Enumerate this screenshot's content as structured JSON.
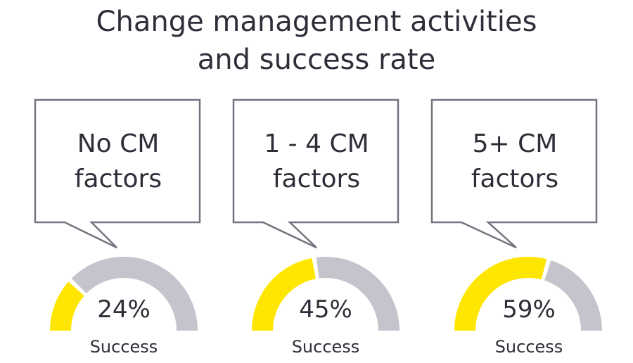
{
  "title": {
    "line1": "Change management activities",
    "line2": "and success rate"
  },
  "colors": {
    "success": "#ffe600",
    "remainder": "#c4c4cd",
    "bubble_stroke": "#747480",
    "text": "#2e2e38"
  },
  "chart_data": {
    "type": "gauge",
    "title": "Change management activities and success rate",
    "categories": [
      "No CM factors",
      "1 - 4 CM factors",
      "5+ CM factors"
    ],
    "values": [
      24,
      45,
      59
    ],
    "unit": "%",
    "value_label": "Success",
    "ylim": [
      0,
      100
    ]
  },
  "panels": [
    {
      "line1": "No CM",
      "line2": "factors",
      "value": 24,
      "pct_label": "24%",
      "success_label": "Success"
    },
    {
      "line1": "1 - 4 CM",
      "line2": "factors",
      "value": 45,
      "pct_label": "45%",
      "success_label": "Success"
    },
    {
      "line1": "5+ CM",
      "line2": "factors",
      "value": 59,
      "pct_label": "59%",
      "success_label": "Success"
    }
  ]
}
